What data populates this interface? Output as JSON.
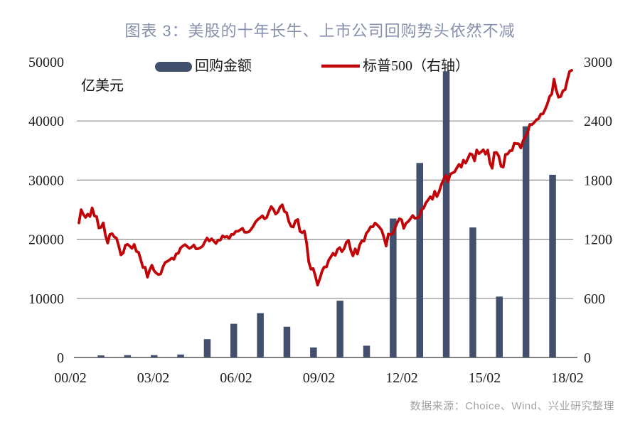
{
  "page": {
    "title": "图表 3：美股的十年长牛、上市公司回购势头依然不减",
    "source": "数据来源：Choice、Wind、兴业研究整理"
  },
  "chart_data": {
    "type": "combo",
    "title": "图表 3：美股的十年长牛、上市公司回购势头依然不减",
    "unit_label": "亿美元",
    "legend_position": "top",
    "grid": "horizontal",
    "colors": {
      "bar": "#42506e",
      "line": "#c00408",
      "grid": "#8a8a8a",
      "axis": "#6e6e6e",
      "title": "#8791ad",
      "source": "#a2a2a2"
    },
    "left_axis": {
      "label": "亿美元",
      "min": 0,
      "max": 50000,
      "ticks": [
        0,
        10000,
        20000,
        30000,
        40000,
        50000
      ],
      "gridlines": [
        10000,
        20000,
        30000,
        40000
      ]
    },
    "right_axis": {
      "label": "标普500",
      "min": 0,
      "max": 3000,
      "ticks": [
        0,
        600,
        1200,
        1800,
        2400,
        3000
      ]
    },
    "x_axis": {
      "tick_labels": [
        "00/02",
        "03/02",
        "06/02",
        "09/02",
        "12/02",
        "15/02",
        "18/02"
      ]
    },
    "series": [
      {
        "name": "回购金额",
        "type": "bar",
        "axis": "left",
        "color": "#42506e",
        "years": [
          2001,
          2002,
          2003,
          2004,
          2005,
          2006,
          2007,
          2008,
          2009,
          2010,
          2011,
          2012,
          2013,
          2014,
          2015,
          2016,
          2017,
          2018
        ],
        "values": [
          350,
          400,
          400,
          500,
          3100,
          5700,
          7500,
          5200,
          1700,
          9600,
          2000,
          23500,
          32900,
          48400,
          22000,
          10300,
          39100,
          30900
        ]
      },
      {
        "name": "标普500（右轴）",
        "type": "line",
        "axis": "right",
        "color": "#c00408",
        "start_year": 2000.0833,
        "step_years": 0.0833,
        "end_year": 2018.6667,
        "values": [
          1366,
          1499,
          1452,
          1421,
          1455,
          1431,
          1518,
          1437,
          1429,
          1315,
          1320,
          1366,
          1240,
          1160,
          1249,
          1256,
          1224,
          1211,
          1134,
          1041,
          1060,
          1139,
          1148,
          1130,
          1107,
          1147,
          1077,
          1067,
          990,
          912,
          916,
          815,
          886,
          936,
          880,
          856,
          841,
          848,
          917,
          964,
          975,
          990,
          1008,
          996,
          1051,
          1058,
          1112,
          1131,
          1145,
          1126,
          1107,
          1121,
          1141,
          1102,
          1104,
          1115,
          1130,
          1174,
          1212,
          1181,
          1204,
          1181,
          1157,
          1192,
          1191,
          1234,
          1220,
          1229,
          1207,
          1249,
          1248,
          1280,
          1281,
          1295,
          1311,
          1270,
          1270,
          1277,
          1304,
          1336,
          1378,
          1401,
          1418,
          1438,
          1407,
          1421,
          1482,
          1531,
          1503,
          1455,
          1474,
          1527,
          1549,
          1481,
          1468,
          1379,
          1331,
          1323,
          1386,
          1400,
          1280,
          1267,
          1283,
          1166,
          969,
          896,
          903,
          826,
          735,
          798,
          873,
          919,
          919,
          987,
          1021,
          1057,
          1036,
          1096,
          1115,
          1074,
          1104,
          1169,
          1187,
          1089,
          1031,
          1102,
          1049,
          1141,
          1183,
          1181,
          1258,
          1286,
          1327,
          1326,
          1364,
          1345,
          1321,
          1292,
          1219,
          1131,
          1253,
          1247,
          1258,
          1312,
          1366,
          1408,
          1398,
          1310,
          1362,
          1379,
          1407,
          1441,
          1412,
          1416,
          1426,
          1498,
          1515,
          1569,
          1598,
          1631,
          1606,
          1686,
          1633,
          1682,
          1757,
          1806,
          1848,
          1783,
          1859,
          1872,
          1884,
          1924,
          1960,
          1931,
          2003,
          1972,
          2018,
          2068,
          2059,
          1995,
          2105,
          2068,
          2086,
          2107,
          2063,
          2104,
          1972,
          1920,
          2079,
          2080,
          2044,
          1940,
          1932,
          2060,
          2065,
          2097,
          2099,
          2174,
          2171,
          2168,
          2126,
          2199,
          2239,
          2279,
          2364,
          2363,
          2384,
          2412,
          2423,
          2470,
          2472,
          2519,
          2575,
          2648,
          2674,
          2824,
          2714,
          2641,
          2648,
          2705,
          2718,
          2816,
          2902,
          2914
        ]
      }
    ],
    "geometry": {
      "y_top": 87,
      "y_bottom": 503,
      "plot_x0": 108,
      "plot_x1": 806,
      "axis_x0": 104,
      "axis_x1": 812,
      "left_label_x": 90,
      "right_label_x": 821,
      "xtick_x0": 99,
      "xtick_dx": 116.5,
      "xtick_label_y": 538,
      "bar_x0": 142,
      "bar_x1": 777,
      "bar_w": 9.5,
      "line_x0": 111,
      "line_x1": 804,
      "line_w": 3.8,
      "unit_x": 114,
      "unit_y": 127,
      "leg1_x": 218,
      "leg2_x": 452,
      "leg_y": 99
    }
  }
}
